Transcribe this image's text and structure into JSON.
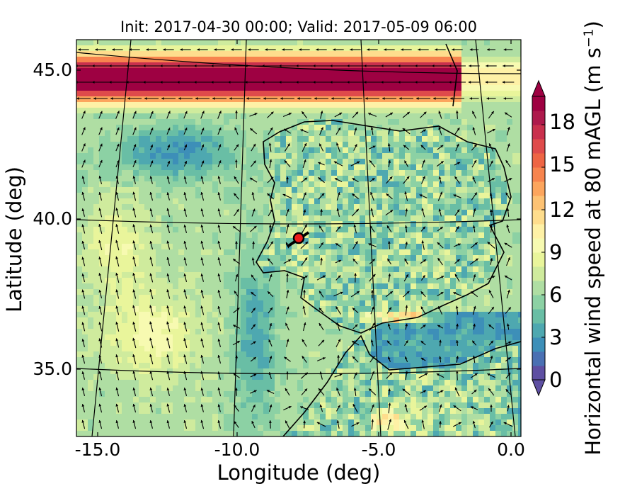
{
  "title": "Init: 2017-04-30 00:00; Valid: 2017-05-09 06:00",
  "xlabel": "Longitude (deg)",
  "ylabel": "Latitude (deg)",
  "xticks": [
    {
      "label": "-15.0",
      "lon": -15
    },
    {
      "label": "-10.0",
      "lon": -10
    },
    {
      "label": "-5.0",
      "lon": -5
    },
    {
      "label": "0.0",
      "lon": 0
    }
  ],
  "yticks": [
    {
      "label": "45.0",
      "lat": 45
    },
    {
      "label": "40.0",
      "lat": 40
    },
    {
      "label": "35.0",
      "lat": 35
    }
  ],
  "colorbar": {
    "label_main": "Horizontal wind speed at 80 mAGL (m s",
    "label_sup": "−1",
    "label_end": ")",
    "ticks": [
      "0",
      "3",
      "6",
      "9",
      "12",
      "15",
      "18"
    ],
    "tick_values": [
      0,
      3,
      6,
      9,
      12,
      15,
      18
    ],
    "range": [
      0,
      20
    ],
    "extend": "both",
    "colors": [
      "#5e4fa2",
      "#4a70b3",
      "#3d8fb8",
      "#4ea8b0",
      "#69bea5",
      "#8cd1a4",
      "#afdea3",
      "#cfeb9d",
      "#e9f59b",
      "#f7fab1",
      "#fef1a6",
      "#fedd8d",
      "#fdc273",
      "#fca55d",
      "#f7844e",
      "#ee6544",
      "#df4b4b",
      "#c9304d",
      "#ae1a4c",
      "#9e0142"
    ]
  },
  "map": {
    "lon_range": [
      -16,
      0.3
    ],
    "lat_range": [
      33,
      46
    ],
    "marker": {
      "lon": -7.6,
      "lat": 39.3,
      "color": "#ee1c1c"
    }
  }
}
